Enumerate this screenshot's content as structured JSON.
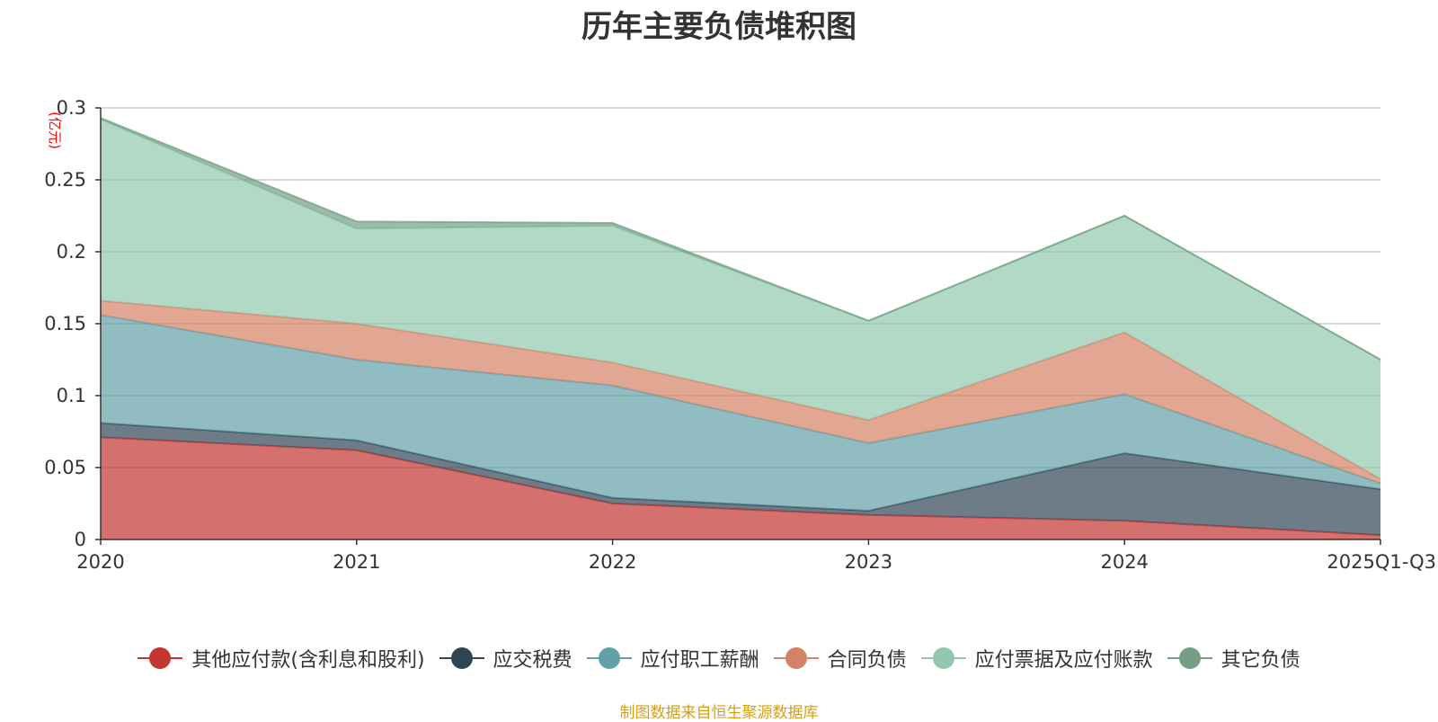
{
  "chart_data": {
    "type": "area",
    "stacked": true,
    "title": "历年主要负债堆积图",
    "unit_label": "(亿元)",
    "source": "制图数据来自恒生聚源数据库",
    "categories": [
      "2020",
      "2021",
      "2022",
      "2023",
      "2024",
      "2025Q1-Q3"
    ],
    "y_ticks": [
      "0",
      "0.05",
      "0.1",
      "0.15",
      "0.2",
      "0.25",
      "0.3"
    ],
    "ylim": [
      0,
      0.3
    ],
    "grid": true,
    "series": [
      {
        "name": "其他应付款(含利息和股利)",
        "color": "#c23531",
        "values": [
          0.071,
          0.062,
          0.025,
          0.017,
          0.013,
          0.003
        ]
      },
      {
        "name": "应交税费",
        "color": "#2f4554",
        "values": [
          0.01,
          0.007,
          0.004,
          0.003,
          0.047,
          0.032
        ]
      },
      {
        "name": "应付职工薪酬",
        "color": "#61a0a8",
        "values": [
          0.075,
          0.056,
          0.078,
          0.047,
          0.041,
          0.004
        ]
      },
      {
        "name": "合同负债",
        "color": "#d48265",
        "values": [
          0.01,
          0.025,
          0.016,
          0.016,
          0.043,
          0.003
        ]
      },
      {
        "name": "应付票据及应付账款",
        "color": "#91c7ae",
        "values": [
          0.126,
          0.066,
          0.095,
          0.069,
          0.081,
          0.083
        ]
      },
      {
        "name": "其它负债",
        "color": "#749f83",
        "values": [
          0.001,
          0.005,
          0.002,
          0.0,
          0.0,
          0.0
        ]
      }
    ]
  }
}
